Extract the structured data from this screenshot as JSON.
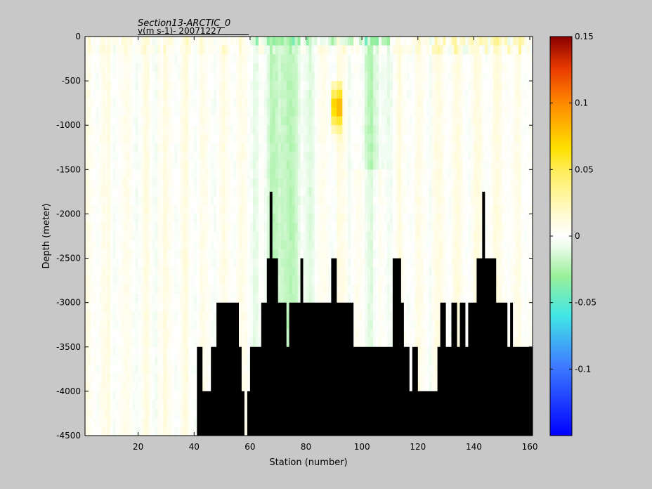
{
  "chart_data": {
    "type": "heatmap",
    "title": "Section13-ARCTIC_0",
    "subtitle": "v(m s-1)- 20071227",
    "xlabel": "Station (number)",
    "ylabel": "Depth (meter)",
    "xlim": [
      1,
      161
    ],
    "ylim": [
      -4500,
      0
    ],
    "x_ticks": [
      20,
      40,
      60,
      80,
      100,
      120,
      140,
      160
    ],
    "y_ticks": [
      0,
      -500,
      -1000,
      -1500,
      -2000,
      -2500,
      -3000,
      -3500,
      -4000,
      -4500
    ],
    "colorbar": {
      "range": [
        -0.15,
        0.15
      ],
      "ticks": [
        0.15,
        0.1,
        0.05,
        0,
        -0.05,
        -0.1
      ],
      "colormap": "jet"
    },
    "description_values": {
      "bathymetry_station_depths": [
        [
          1,
          -4500
        ],
        [
          40,
          -4500
        ],
        [
          41,
          -3500
        ],
        [
          43,
          -4000
        ],
        [
          46,
          -3500
        ],
        [
          48,
          -3000
        ],
        [
          56,
          -3500
        ],
        [
          57,
          -4000
        ],
        [
          58,
          -4500
        ],
        [
          59,
          -4000
        ],
        [
          60,
          -3500
        ],
        [
          64,
          -3000
        ],
        [
          66,
          -2500
        ],
        [
          67,
          -1750
        ],
        [
          68,
          -2500
        ],
        [
          70,
          -3000
        ],
        [
          73,
          -3500
        ],
        [
          74,
          -3000
        ],
        [
          78,
          -2500
        ],
        [
          79,
          -3000
        ],
        [
          89,
          -2500
        ],
        [
          91,
          -3000
        ],
        [
          97,
          -3500
        ],
        [
          111,
          -2500
        ],
        [
          114,
          -3000
        ],
        [
          115,
          -3500
        ],
        [
          117,
          -4000
        ],
        [
          118,
          -3500
        ],
        [
          120,
          -4000
        ],
        [
          127,
          -3500
        ],
        [
          128,
          -3000
        ],
        [
          130,
          -3500
        ],
        [
          132,
          -3000
        ],
        [
          134,
          -3500
        ],
        [
          135,
          -3000
        ],
        [
          137,
          -3500
        ],
        [
          138,
          -3000
        ],
        [
          141,
          -2500
        ],
        [
          143,
          -1750
        ],
        [
          144,
          -2500
        ],
        [
          148,
          -3000
        ],
        [
          152,
          -3500
        ],
        [
          153,
          -3000
        ],
        [
          154,
          -3500
        ],
        [
          161,
          -3500
        ]
      ]
    }
  }
}
